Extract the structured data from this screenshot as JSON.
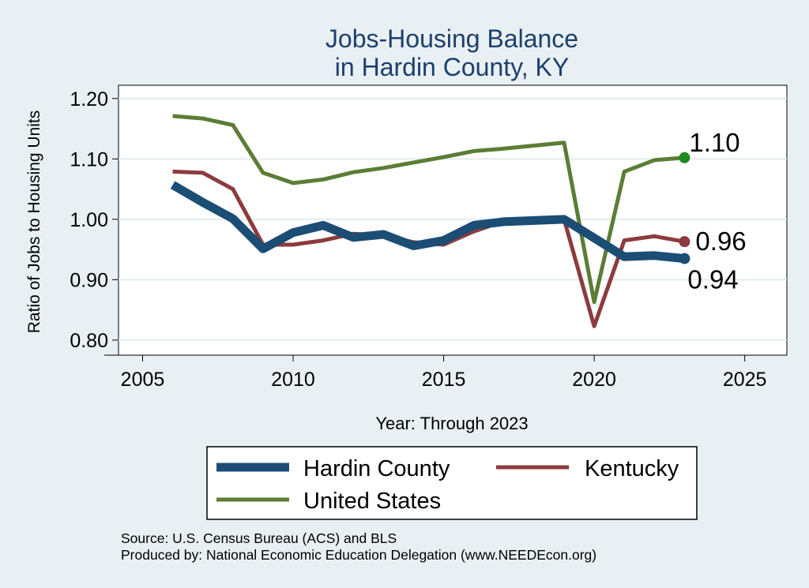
{
  "chart_data": {
    "type": "line",
    "title": "Jobs-Housing Balance",
    "subtitle": "in Hardin County, KY",
    "xlabel": "Year: Through 2023",
    "ylabel": "Ratio of Jobs to Housing Units",
    "xlim": [
      2004.2,
      2026.4
    ],
    "ylim": [
      0.775,
      1.222
    ],
    "xticks": [
      2005,
      2010,
      2015,
      2020,
      2025
    ],
    "yticks": [
      0.8,
      0.9,
      1.0,
      1.1,
      1.2
    ],
    "xtick_labels": [
      "2005",
      "2010",
      "2015",
      "2020",
      "2025"
    ],
    "ytick_labels": [
      "0.80",
      "0.90",
      "1.00",
      "1.10",
      "1.20"
    ],
    "grid": true,
    "legend_position": "bottom",
    "x": [
      2006,
      2007,
      2008,
      2009,
      2010,
      2011,
      2012,
      2013,
      2014,
      2015,
      2016,
      2017,
      2018,
      2019,
      2020,
      2021,
      2022,
      2023
    ],
    "series": [
      {
        "name": "Hardin County",
        "color": "#1b4d75",
        "values": [
          1.057,
          1.028,
          1.001,
          0.951,
          0.978,
          0.99,
          0.97,
          0.975,
          0.956,
          0.965,
          0.99,
          0.996,
          0.998,
          1.0,
          0.969,
          0.938,
          0.94,
          0.935
        ],
        "end_label": "0.94"
      },
      {
        "name": "Kentucky",
        "color": "#8d3b3e",
        "values": [
          1.079,
          1.077,
          1.05,
          0.958,
          0.958,
          0.965,
          0.976,
          0.973,
          0.962,
          0.958,
          0.98,
          0.997,
          1.0,
          1.0,
          0.823,
          0.965,
          0.972,
          0.963
        ],
        "end_label": "0.96"
      },
      {
        "name": "United States",
        "color": "#5b7d35",
        "values": [
          1.171,
          1.167,
          1.156,
          1.077,
          1.06,
          1.066,
          1.078,
          1.085,
          1.094,
          1.103,
          1.113,
          1.117,
          1.122,
          1.127,
          0.863,
          1.079,
          1.098,
          1.102
        ],
        "end_label": "1.10",
        "end_marker_color": "#1f8a1f"
      }
    ],
    "source_note": "Source: U.S. Census Bureau (ACS) and BLS",
    "producer_note": "Produced by: National Economic Education Delegation (www.NEEDEcon.org)"
  }
}
